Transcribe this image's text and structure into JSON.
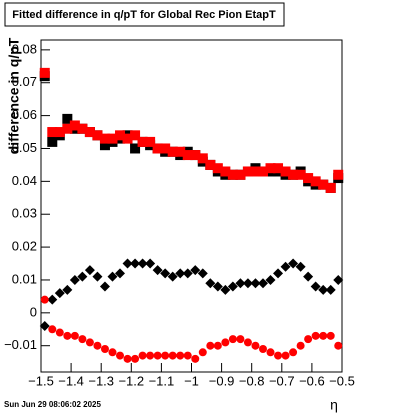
{
  "chart_data": {
    "type": "scatter",
    "title": "Fitted difference in q/pT for Global Rec Pion EtapT",
    "y_label": "difference in q/pT",
    "x_label": "η",
    "timestamp": "Sun Jun 29 08:06:02 2025",
    "x": [
      -1.4875,
      -1.4625,
      -1.4375,
      -1.4125,
      -1.3875,
      -1.3625,
      -1.3375,
      -1.3125,
      -1.2875,
      -1.2625,
      -1.2375,
      -1.2125,
      -1.1875,
      -1.1625,
      -1.1375,
      -1.1125,
      -1.0875,
      -1.0625,
      -1.0375,
      -1.0125,
      -0.9875,
      -0.9625,
      -0.9375,
      -0.9125,
      -0.8875,
      -0.8625,
      -0.8375,
      -0.8125,
      -0.7875,
      -0.7625,
      -0.7375,
      -0.7125,
      -0.6875,
      -0.6625,
      -0.6375,
      -0.6125,
      -0.5875,
      -0.5625,
      -0.5375,
      -0.5125
    ],
    "series": [
      {
        "color": "#000000",
        "marker": "square",
        "values": [
          0.072,
          0.052,
          0.054,
          0.059,
          0.056,
          0.056,
          0.055,
          0.054,
          0.051,
          0.052,
          0.053,
          0.054,
          0.05,
          0.052,
          0.051,
          0.05,
          0.049,
          0.049,
          0.048,
          0.049,
          0.048,
          0.046,
          0.045,
          0.043,
          0.042,
          0.042,
          0.042,
          0.043,
          0.044,
          0.043,
          0.043,
          0.043,
          0.042,
          0.042,
          0.043,
          0.04,
          0.039,
          0.039,
          0.038,
          0.041
        ]
      },
      {
        "color": "#ff0000",
        "marker": "square",
        "values": [
          0.073,
          0.055,
          0.055,
          0.056,
          0.057,
          0.056,
          0.055,
          0.054,
          0.053,
          0.053,
          0.054,
          0.053,
          0.054,
          0.052,
          0.052,
          0.05,
          0.05,
          0.049,
          0.049,
          0.048,
          0.048,
          0.047,
          0.045,
          0.044,
          0.043,
          0.042,
          0.042,
          0.043,
          0.043,
          0.043,
          0.044,
          0.044,
          0.043,
          0.042,
          0.042,
          0.041,
          0.04,
          0.039,
          0.038,
          0.042
        ]
      },
      {
        "color": "#000000",
        "marker": "diamond",
        "values": [
          -0.004,
          0.004,
          0.006,
          0.007,
          0.01,
          0.011,
          0.013,
          0.011,
          0.008,
          0.011,
          0.012,
          0.015,
          0.015,
          0.015,
          0.015,
          0.013,
          0.012,
          0.011,
          0.012,
          0.012,
          0.013,
          0.012,
          0.009,
          0.008,
          0.007,
          0.008,
          0.009,
          0.009,
          0.009,
          0.009,
          0.01,
          0.012,
          0.014,
          0.015,
          0.014,
          0.011,
          0.008,
          0.007,
          0.007,
          0.01
        ]
      },
      {
        "color": "#ff0000",
        "marker": "circle",
        "values": [
          0.004,
          -0.005,
          -0.006,
          -0.007,
          -0.007,
          -0.008,
          -0.009,
          -0.01,
          -0.011,
          -0.012,
          -0.013,
          -0.014,
          -0.014,
          -0.013,
          -0.013,
          -0.013,
          -0.013,
          -0.013,
          -0.013,
          -0.013,
          -0.014,
          -0.012,
          -0.01,
          -0.01,
          -0.009,
          -0.008,
          -0.008,
          -0.009,
          -0.01,
          -0.011,
          -0.012,
          -0.013,
          -0.013,
          -0.012,
          -0.01,
          -0.008,
          -0.007,
          -0.007,
          -0.007,
          -0.01
        ]
      }
    ],
    "xlim": [
      -1.5,
      -0.5
    ],
    "xticks": [
      {
        "value": -1.5,
        "label": "−1.5"
      },
      {
        "value": -1.4,
        "label": "−1.4"
      },
      {
        "value": -1.3,
        "label": "−1.3"
      },
      {
        "value": -1.2,
        "label": "−1.2"
      },
      {
        "value": -1.1,
        "label": "−1.1"
      },
      {
        "value": -1,
        "label": "−1"
      },
      {
        "value": -0.9,
        "label": "−0.9"
      },
      {
        "value": -0.8,
        "label": "−0.8"
      },
      {
        "value": -0.7,
        "label": "−0.7"
      },
      {
        "value": -0.6,
        "label": "−0.6"
      },
      {
        "value": -0.5,
        "label": "−0.5"
      }
    ],
    "ylim": [
      -0.018,
      0.083
    ],
    "yticks": [
      {
        "value": -0.01,
        "label": "−0.01"
      },
      0,
      0.01,
      0.02,
      0.03,
      0.04,
      0.05,
      0.06,
      0.07,
      0.08
    ]
  }
}
